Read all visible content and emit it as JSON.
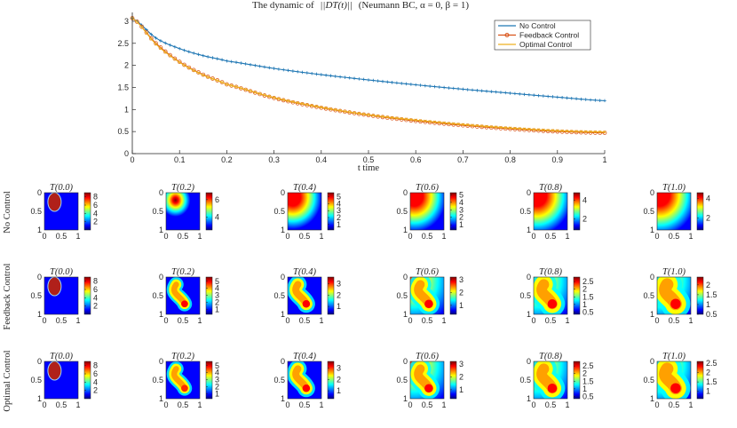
{
  "chart_data": [
    {
      "type": "line",
      "title": "The dynamic of ||DT(t)|| (Neumann BC, α = 0, β = 1)",
      "title_parts": {
        "prefix": "The dynamic of",
        "norm": "||DT(t)||",
        "suffix": "(Neumann BC, α = 0, β = 1)"
      },
      "xlabel": "t time",
      "ylabel": "",
      "xlim": [
        0,
        1
      ],
      "ylim": [
        0,
        3.2
      ],
      "xticks": [
        0,
        0.1,
        0.2,
        0.3,
        0.4,
        0.5,
        0.6,
        0.7,
        0.8,
        0.9,
        1
      ],
      "xtick_labels": [
        "0",
        "0.1",
        "0.2",
        "0.3",
        "0.4",
        "0.5",
        "0.6",
        "0.7",
        "0.8",
        "0.9",
        "1"
      ],
      "yticks": [
        0,
        0.5,
        1,
        1.5,
        2,
        2.5,
        3
      ],
      "ytick_labels": [
        "0",
        "0.5",
        "1",
        "1.5",
        "2",
        "2.5",
        "3"
      ],
      "legend_position": "top-right",
      "series": [
        {
          "name": "No Control",
          "color": "#1f77b4",
          "marker": "plus",
          "x": [
            0,
            0.05,
            0.1,
            0.15,
            0.2,
            0.3,
            0.4,
            0.5,
            0.6,
            0.7,
            0.8,
            0.9,
            1.0
          ],
          "values": [
            3.07,
            2.62,
            2.38,
            2.22,
            2.1,
            1.93,
            1.79,
            1.67,
            1.56,
            1.46,
            1.37,
            1.28,
            1.2
          ]
        },
        {
          "name": "Feedback Control",
          "color": "#d95319",
          "marker": "circle",
          "x": [
            0,
            0.05,
            0.1,
            0.15,
            0.2,
            0.3,
            0.4,
            0.5,
            0.6,
            0.7,
            0.8,
            0.9,
            1.0
          ],
          "values": [
            3.07,
            2.5,
            2.08,
            1.79,
            1.57,
            1.26,
            1.04,
            0.87,
            0.74,
            0.64,
            0.56,
            0.5,
            0.47
          ]
        },
        {
          "name": "Optimal Control",
          "color": "#edb120",
          "marker": "x",
          "x": [
            0,
            0.05,
            0.1,
            0.15,
            0.2,
            0.3,
            0.4,
            0.5,
            0.6,
            0.7,
            0.8,
            0.9,
            1.0
          ],
          "values": [
            3.07,
            2.48,
            2.07,
            1.78,
            1.57,
            1.27,
            1.05,
            0.88,
            0.76,
            0.66,
            0.58,
            0.52,
            0.49
          ]
        }
      ]
    },
    {
      "type": "heatmap",
      "rows": [
        "No Control",
        "Feedback Control",
        "Optimal Control"
      ],
      "panel_titles": [
        "T(0.0)",
        "T(0.2)",
        "T(0.4)",
        "T(0.6)",
        "T(0.8)",
        "T(1.0)"
      ],
      "x_tick_labels": [
        "0",
        "0.5",
        "1"
      ],
      "y_tick_labels": [
        "0",
        "0.5",
        "1"
      ],
      "colormap": [
        "#00007f",
        "#0000ff",
        "#00ffff",
        "#ffff00",
        "#ff0000",
        "#7f0000"
      ],
      "colorbar_ticks": [
        [
          [
            2,
            4,
            6,
            8
          ],
          [
            4,
            6
          ],
          [
            1,
            2,
            3,
            4,
            5
          ],
          [
            1,
            2,
            3,
            4,
            5
          ],
          [
            2,
            4
          ],
          [
            2,
            4
          ]
        ],
        [
          [
            2,
            4,
            6,
            8
          ],
          [
            1,
            2,
            3,
            4,
            5
          ],
          [
            1,
            2,
            3
          ],
          [
            1,
            2,
            3
          ],
          [
            0.5,
            1,
            1.5,
            2,
            2.5
          ],
          [
            0.5,
            1,
            1.5,
            2
          ]
        ],
        [
          [
            2,
            4,
            6,
            8
          ],
          [
            1,
            2,
            3,
            4,
            5
          ],
          [
            1,
            2,
            3
          ],
          [
            1,
            2,
            3
          ],
          [
            0.5,
            1,
            1.5,
            2,
            2.5
          ],
          [
            1,
            1.5,
            2,
            2.5
          ]
        ]
      ],
      "colorbar_ranges": [
        [
          [
            0,
            9
          ],
          [
            2.5,
            6.8
          ],
          [
            0.2,
            5.6
          ],
          [
            0.3,
            5.3
          ],
          [
            0.8,
            4.8
          ],
          [
            0.8,
            4.6
          ]
        ],
        [
          [
            0,
            9
          ],
          [
            0.3,
            5.6
          ],
          [
            0.3,
            3.6
          ],
          [
            0.3,
            3.2
          ],
          [
            0.35,
            2.8
          ],
          [
            0.5,
            2.4
          ]
        ],
        [
          [
            0,
            9
          ],
          [
            0.3,
            5.6
          ],
          [
            0.3,
            3.6
          ],
          [
            0.3,
            3.2
          ],
          [
            0.35,
            2.8
          ],
          [
            0.6,
            2.6
          ]
        ]
      ]
    }
  ]
}
